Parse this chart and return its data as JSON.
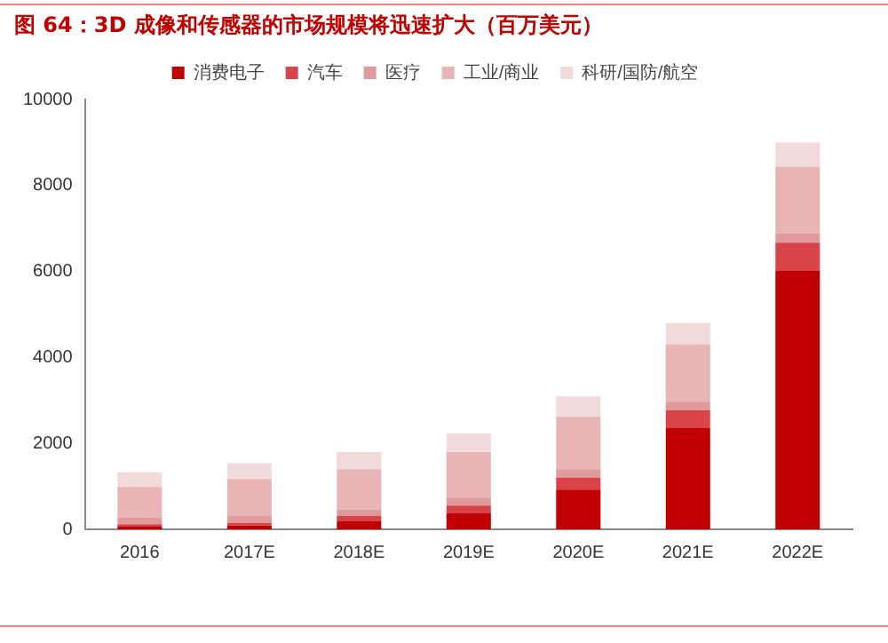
{
  "chart_data": {
    "type": "bar",
    "stacked": true,
    "title": "图 64：3D 成像和传感器的市场规模将迅速扩大（百万美元）",
    "categories": [
      "2016",
      "2017E",
      "2018E",
      "2019E",
      "2020E",
      "2021E",
      "2022E"
    ],
    "series": [
      {
        "name": "消费电子",
        "color": "#c00000",
        "values": [
          60,
          90,
          185,
          370,
          925,
          2355,
          6010
        ]
      },
      {
        "name": "汽车",
        "color": "#d9444a",
        "values": [
          60,
          60,
          125,
          185,
          275,
          415,
          660
        ]
      },
      {
        "name": "医疗",
        "color": "#e09a9c",
        "values": [
          160,
          160,
          150,
          185,
          200,
          200,
          220
        ]
      },
      {
        "name": "工业/商业",
        "color": "#e8b4b6",
        "values": [
          705,
          860,
          940,
          1060,
          1220,
          1330,
          1540
        ]
      },
      {
        "name": "科研/国防/航空",
        "color": "#f2d9da",
        "values": [
          340,
          370,
          400,
          430,
          475,
          500,
          570
        ]
      }
    ],
    "ylim": [
      0,
      10000
    ],
    "yticks": [
      0,
      2000,
      4000,
      6000,
      8000,
      10000
    ],
    "grid": false,
    "legend": "top"
  }
}
